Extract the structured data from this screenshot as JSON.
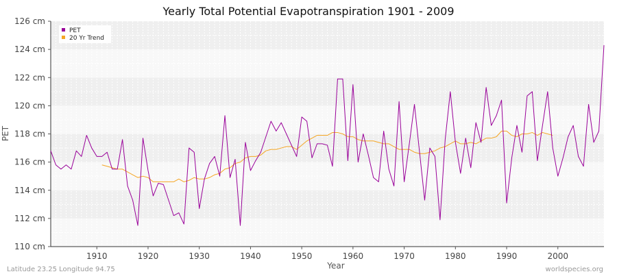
{
  "chart_data": {
    "type": "line",
    "title": "Yearly Total Potential Evapotranspiration 1901 - 2009",
    "xlabel": "Year",
    "ylabel": "PET",
    "y_unit": "cm",
    "xlim": [
      1901,
      2009
    ],
    "ylim": [
      110,
      126
    ],
    "x_ticks": [
      1910,
      1920,
      1930,
      1940,
      1950,
      1960,
      1970,
      1980,
      1990,
      2000
    ],
    "y_ticks": [
      110,
      112,
      114,
      116,
      118,
      120,
      122,
      124,
      126
    ],
    "y_tick_labels": [
      "110 cm",
      "112 cm",
      "114 cm",
      "116 cm",
      "118 cm",
      "120 cm",
      "122 cm",
      "124 cm",
      "126 cm"
    ],
    "legend_position": "top-left",
    "grid": true,
    "series": [
      {
        "name": "PET",
        "color": "#990099",
        "x": [
          1901,
          1902,
          1903,
          1904,
          1905,
          1906,
          1907,
          1908,
          1909,
          1910,
          1911,
          1912,
          1913,
          1914,
          1915,
          1916,
          1917,
          1918,
          1919,
          1920,
          1921,
          1922,
          1923,
          1924,
          1925,
          1926,
          1927,
          1928,
          1929,
          1930,
          1931,
          1932,
          1933,
          1934,
          1935,
          1936,
          1937,
          1938,
          1939,
          1940,
          1941,
          1942,
          1943,
          1944,
          1945,
          1946,
          1947,
          1948,
          1949,
          1950,
          1951,
          1952,
          1953,
          1954,
          1955,
          1956,
          1957,
          1958,
          1959,
          1960,
          1961,
          1962,
          1963,
          1964,
          1965,
          1966,
          1967,
          1968,
          1969,
          1970,
          1971,
          1972,
          1973,
          1974,
          1975,
          1976,
          1977,
          1978,
          1979,
          1980,
          1981,
          1982,
          1983,
          1984,
          1985,
          1986,
          1987,
          1988,
          1989,
          1990,
          1991,
          1992,
          1993,
          1994,
          1995,
          1996,
          1997,
          1998,
          1999,
          2000,
          2001,
          2002,
          2003,
          2004,
          2005,
          2006,
          2007,
          2008,
          2009
        ],
        "values": [
          116.8,
          115.8,
          115.5,
          115.8,
          115.5,
          116.8,
          116.4,
          117.9,
          117.0,
          116.4,
          116.4,
          116.7,
          115.5,
          115.5,
          117.6,
          114.3,
          113.3,
          111.5,
          117.7,
          115.4,
          113.6,
          114.5,
          114.4,
          113.3,
          112.2,
          112.4,
          111.6,
          117.0,
          116.7,
          112.7,
          114.8,
          115.9,
          116.4,
          115.0,
          119.3,
          114.9,
          116.2,
          111.5,
          117.4,
          115.4,
          116.1,
          116.7,
          117.8,
          118.9,
          118.2,
          118.8,
          118.0,
          117.2,
          116.4,
          119.2,
          118.9,
          116.3,
          117.3,
          117.3,
          117.2,
          115.7,
          121.9,
          121.9,
          116.1,
          121.5,
          116.0,
          118.0,
          116.5,
          114.9,
          114.6,
          118.2,
          115.5,
          114.3,
          120.3,
          114.6,
          117.3,
          120.1,
          116.7,
          113.3,
          117.0,
          116.4,
          111.9,
          117.6,
          121.0,
          117.4,
          115.2,
          117.7,
          115.6,
          118.8,
          117.4,
          121.3,
          118.6,
          119.3,
          120.4,
          113.1,
          116.3,
          118.6,
          116.7,
          120.7,
          121.0,
          116.1,
          118.6,
          121.0,
          117.0,
          115.0,
          116.3,
          117.8,
          118.6,
          116.4,
          115.7,
          120.1,
          117.4,
          118.2,
          124.3
        ]
      },
      {
        "name": "20 Yr Trend",
        "color": "#f5a623",
        "x": [
          1911,
          1912,
          1913,
          1914,
          1915,
          1916,
          1917,
          1918,
          1919,
          1920,
          1921,
          1922,
          1923,
          1924,
          1925,
          1926,
          1927,
          1928,
          1929,
          1930,
          1931,
          1932,
          1933,
          1934,
          1935,
          1936,
          1937,
          1938,
          1939,
          1940,
          1941,
          1942,
          1943,
          1944,
          1945,
          1946,
          1947,
          1948,
          1949,
          1950,
          1951,
          1952,
          1953,
          1954,
          1955,
          1956,
          1957,
          1958,
          1959,
          1960,
          1961,
          1962,
          1963,
          1964,
          1965,
          1966,
          1967,
          1968,
          1969,
          1970,
          1971,
          1972,
          1973,
          1974,
          1975,
          1976,
          1977,
          1978,
          1979,
          1980,
          1981,
          1982,
          1983,
          1984,
          1985,
          1986,
          1987,
          1988,
          1989,
          1990,
          1991,
          1992,
          1993,
          1994,
          1995,
          1996,
          1997,
          1998,
          1999
        ],
        "values": [
          115.8,
          115.7,
          115.6,
          115.5,
          115.5,
          115.3,
          115.1,
          114.9,
          115.0,
          114.9,
          114.6,
          114.6,
          114.6,
          114.6,
          114.6,
          114.8,
          114.6,
          114.7,
          114.9,
          114.8,
          114.8,
          114.9,
          115.1,
          115.2,
          115.5,
          115.6,
          115.9,
          116.0,
          116.3,
          116.4,
          116.4,
          116.5,
          116.8,
          116.9,
          116.9,
          117.0,
          117.1,
          117.1,
          116.9,
          117.2,
          117.5,
          117.7,
          117.9,
          117.9,
          117.9,
          118.1,
          118.1,
          118.0,
          117.8,
          117.8,
          117.6,
          117.5,
          117.5,
          117.5,
          117.4,
          117.3,
          117.3,
          117.1,
          116.9,
          116.9,
          116.9,
          116.7,
          116.6,
          116.6,
          116.7,
          116.8,
          117.0,
          117.1,
          117.3,
          117.5,
          117.3,
          117.3,
          117.4,
          117.3,
          117.5,
          117.7,
          117.7,
          117.8,
          118.2,
          118.2,
          117.9,
          117.8,
          118.0,
          118.0,
          118.1,
          117.9,
          118.1,
          118.0,
          117.9
        ]
      }
    ]
  },
  "footer": {
    "left": "Latitude 23.25 Longitude 94.75",
    "right": "worldspecies.org"
  }
}
